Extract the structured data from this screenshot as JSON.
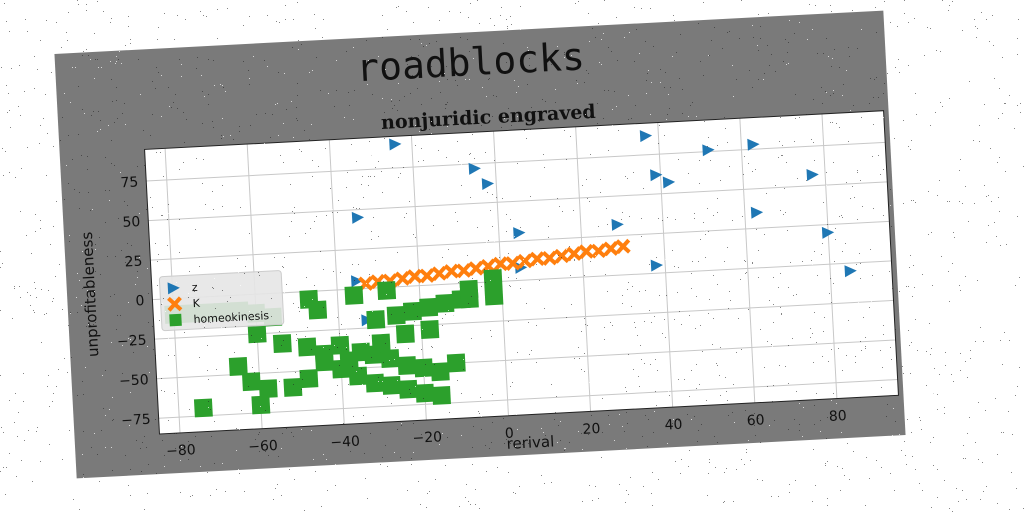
{
  "figure_title": "roadblocks",
  "chart_data": {
    "type": "scatter",
    "title": "nonjuridic engraved",
    "xlabel": "rerival",
    "ylabel": "unprofitableness",
    "xlim": [
      -85,
      95
    ],
    "ylim": [
      -85,
      95
    ],
    "xticks": [
      -80,
      -60,
      -40,
      -20,
      0,
      20,
      40,
      60,
      80
    ],
    "yticks": [
      -75,
      -50,
      -25,
      0,
      25,
      50,
      75
    ],
    "grid": true,
    "legend_position": "center-left",
    "series": [
      {
        "name": "z",
        "marker": "triangle-right",
        "color": "#1f77b4",
        "points": [
          [
            -24,
            90
          ],
          [
            -5,
            72
          ],
          [
            -2,
            62
          ],
          [
            -34,
            45
          ],
          [
            -35,
            5
          ],
          [
            5,
            30
          ],
          [
            37,
            87
          ],
          [
            39,
            62
          ],
          [
            42,
            57
          ],
          [
            52,
            76
          ],
          [
            63,
            78
          ],
          [
            63,
            35
          ],
          [
            77,
            57
          ],
          [
            80,
            20
          ],
          [
            29,
            32
          ],
          [
            38,
            5
          ],
          [
            85,
            -5
          ],
          [
            5,
            8
          ],
          [
            -33,
            -20
          ]
        ]
      },
      {
        "name": "K",
        "marker": "x",
        "color": "#ff7f0e",
        "points": [
          [
            -33,
            3
          ],
          [
            -30,
            4
          ],
          [
            -27,
            4
          ],
          [
            -24,
            5
          ],
          [
            -21,
            6
          ],
          [
            -18,
            6
          ],
          [
            -15,
            7
          ],
          [
            -12,
            8
          ],
          [
            -9,
            8
          ],
          [
            -6,
            9
          ],
          [
            -3,
            10
          ],
          [
            0,
            11
          ],
          [
            3,
            11
          ],
          [
            6,
            12
          ],
          [
            9,
            13
          ],
          [
            12,
            13
          ],
          [
            15,
            14
          ],
          [
            18,
            15
          ],
          [
            21,
            16
          ],
          [
            24,
            16
          ],
          [
            27,
            17
          ],
          [
            30,
            18
          ]
        ]
      },
      {
        "name": "homeokinesis",
        "marker": "square",
        "color": "#2ca02c",
        "points": [
          [
            -80,
            -10
          ],
          [
            -76,
            -10
          ],
          [
            -72,
            -10
          ],
          [
            -68,
            -10
          ],
          [
            -64,
            -10
          ],
          [
            -60,
            -12
          ],
          [
            -56,
            -15
          ],
          [
            -47,
            -5
          ],
          [
            -45,
            -12
          ],
          [
            -36,
            -4
          ],
          [
            -28,
            -2
          ],
          [
            -31,
            -20
          ],
          [
            -26,
            -18
          ],
          [
            -22,
            -16
          ],
          [
            -18,
            -14
          ],
          [
            -14,
            -12
          ],
          [
            -10,
            -10
          ],
          [
            -2,
            2
          ],
          [
            -8,
            -4
          ],
          [
            -2,
            -9
          ],
          [
            -60,
            -25
          ],
          [
            -54,
            -32
          ],
          [
            -48,
            -35
          ],
          [
            -44,
            -40
          ],
          [
            -40,
            -35
          ],
          [
            -38,
            -45
          ],
          [
            -35,
            -40
          ],
          [
            -32,
            -42
          ],
          [
            -28,
            -45
          ],
          [
            -24,
            -50
          ],
          [
            -20,
            -52
          ],
          [
            -16,
            -55
          ],
          [
            -12,
            -50
          ],
          [
            -65,
            -45
          ],
          [
            -62,
            -55
          ],
          [
            -58,
            -60
          ],
          [
            -52,
            -60
          ],
          [
            -48,
            -55
          ],
          [
            -44,
            -45
          ],
          [
            -40,
            -50
          ],
          [
            -36,
            -55
          ],
          [
            -32,
            -60
          ],
          [
            -28,
            -62
          ],
          [
            -24,
            -65
          ],
          [
            -20,
            -68
          ],
          [
            -16,
            -70
          ],
          [
            -74,
            -70
          ],
          [
            -60,
            -70
          ],
          [
            -30,
            -35
          ],
          [
            -24,
            -30
          ],
          [
            -18,
            -28
          ],
          [
            -8,
            -10
          ]
        ]
      }
    ]
  }
}
